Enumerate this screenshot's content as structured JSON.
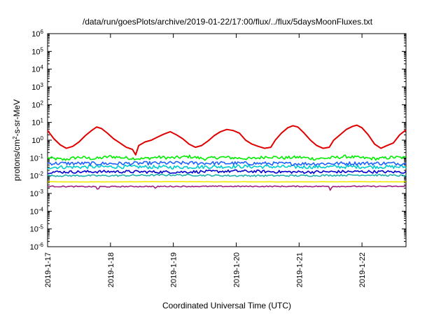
{
  "page": {
    "title": "/data/run/goesPlots/archive/2019-01-22/17:00/flux/../flux/5daysMoonFluxes.txt"
  },
  "chart_data": {
    "type": "line",
    "title": "/data/run/goesPlots/archive/2019-01-22/17:00/flux/../flux/5daysMoonFluxes.txt",
    "xlabel": "Coordinated Universal Time (UTC)",
    "ylabel": "protons/cm²-s-sr-MeV",
    "ylabel_parts": [
      "protons/cm",
      "2",
      "-s-sr-MeV"
    ],
    "yscale": "log",
    "ylim_exp": [
      -6,
      6
    ],
    "y_tick_exponents": [
      -6,
      -5,
      -4,
      -3,
      -2,
      -1,
      0,
      1,
      2,
      3,
      4,
      5,
      6
    ],
    "xlim_days": [
      0,
      5.7
    ],
    "x_ticks": [
      {
        "day": 0,
        "label": "2019-1-17"
      },
      {
        "day": 1,
        "label": "2019-1-18"
      },
      {
        "day": 2,
        "label": "2019-1-19"
      },
      {
        "day": 3,
        "label": "2019-1-20"
      },
      {
        "day": 4,
        "label": "2019-1-21"
      },
      {
        "day": 5,
        "label": "2019-1-22"
      }
    ],
    "grid": false,
    "legend": "none",
    "series": [
      {
        "color": "#e00000",
        "points": [
          [
            0.0,
            3.5
          ],
          [
            0.1,
            1.2
          ],
          [
            0.2,
            0.55
          ],
          [
            0.3,
            0.35
          ],
          [
            0.4,
            0.45
          ],
          [
            0.5,
            0.8
          ],
          [
            0.6,
            1.8
          ],
          [
            0.7,
            3.5
          ],
          [
            0.78,
            5.5
          ],
          [
            0.86,
            4.5
          ],
          [
            0.95,
            2.5
          ],
          [
            1.05,
            1.2
          ],
          [
            1.15,
            0.7
          ],
          [
            1.25,
            0.4
          ],
          [
            1.35,
            0.3
          ],
          [
            1.4,
            0.15
          ],
          [
            1.45,
            0.5
          ],
          [
            1.55,
            0.8
          ],
          [
            1.65,
            1.0
          ],
          [
            1.75,
            1.5
          ],
          [
            1.85,
            2.2
          ],
          [
            1.95,
            3.0
          ],
          [
            2.05,
            2.0
          ],
          [
            2.15,
            1.2
          ],
          [
            2.25,
            0.6
          ],
          [
            2.35,
            0.4
          ],
          [
            2.45,
            0.5
          ],
          [
            2.55,
            0.9
          ],
          [
            2.65,
            1.8
          ],
          [
            2.75,
            3.0
          ],
          [
            2.85,
            4.0
          ],
          [
            2.95,
            3.5
          ],
          [
            3.05,
            2.5
          ],
          [
            3.15,
            1.0
          ],
          [
            3.25,
            0.6
          ],
          [
            3.35,
            0.45
          ],
          [
            3.45,
            0.35
          ],
          [
            3.55,
            0.4
          ],
          [
            3.62,
            1.0
          ],
          [
            3.72,
            2.5
          ],
          [
            3.82,
            5.0
          ],
          [
            3.9,
            6.5
          ],
          [
            3.98,
            5.5
          ],
          [
            4.08,
            2.5
          ],
          [
            4.18,
            1.0
          ],
          [
            4.28,
            0.5
          ],
          [
            4.38,
            0.35
          ],
          [
            4.48,
            0.4
          ],
          [
            4.55,
            1.0
          ],
          [
            4.65,
            2.0
          ],
          [
            4.75,
            4.0
          ],
          [
            4.85,
            6.0
          ],
          [
            4.92,
            7.0
          ],
          [
            5.0,
            5.0
          ],
          [
            5.1,
            2.0
          ],
          [
            5.2,
            0.6
          ],
          [
            5.3,
            0.35
          ],
          [
            5.4,
            0.5
          ],
          [
            5.5,
            0.7
          ],
          [
            5.6,
            2.0
          ],
          [
            5.7,
            3.8
          ]
        ]
      },
      {
        "color": "#00ee00",
        "points": [
          [
            0.0,
            0.1
          ],
          [
            0.25,
            0.08
          ],
          [
            0.5,
            0.11
          ],
          [
            0.75,
            0.09
          ],
          [
            1.0,
            0.12
          ],
          [
            1.25,
            0.1
          ],
          [
            1.5,
            0.09
          ],
          [
            1.75,
            0.11
          ],
          [
            2.0,
            0.1
          ],
          [
            2.25,
            0.12
          ],
          [
            2.5,
            0.09
          ],
          [
            2.75,
            0.11
          ],
          [
            3.0,
            0.1
          ],
          [
            3.25,
            0.09
          ],
          [
            3.5,
            0.12
          ],
          [
            3.75,
            0.1
          ],
          [
            4.0,
            0.11
          ],
          [
            4.25,
            0.09
          ],
          [
            4.5,
            0.1
          ],
          [
            4.75,
            0.12
          ],
          [
            5.0,
            0.1
          ],
          [
            5.25,
            0.09
          ],
          [
            5.5,
            0.11
          ],
          [
            5.7,
            0.1
          ]
        ],
        "noise": 0.09
      },
      {
        "color": "#00cccc",
        "points": [
          [
            0.0,
            0.03
          ],
          [
            1.0,
            0.032
          ],
          [
            2.0,
            0.03
          ],
          [
            3.0,
            0.033
          ],
          [
            4.0,
            0.031
          ],
          [
            5.0,
            0.032
          ],
          [
            5.7,
            0.031
          ]
        ],
        "noise": 0.1
      },
      {
        "color": "#2060ff",
        "points": [
          [
            0.0,
            0.05
          ],
          [
            1.0,
            0.048
          ],
          [
            2.0,
            0.052
          ],
          [
            3.0,
            0.05
          ],
          [
            4.0,
            0.047
          ],
          [
            5.0,
            0.05
          ],
          [
            5.7,
            0.049
          ]
        ],
        "noise": 0.1
      },
      {
        "color": "#0000cc",
        "points": [
          [
            0.0,
            0.016
          ],
          [
            1.0,
            0.017
          ],
          [
            2.0,
            0.016
          ],
          [
            3.0,
            0.018
          ],
          [
            4.0,
            0.016
          ],
          [
            5.0,
            0.017
          ],
          [
            5.7,
            0.016
          ]
        ],
        "noise": 0.08
      },
      {
        "color": "#20b0b0",
        "points": [
          [
            0.0,
            0.01
          ],
          [
            1.0,
            0.01
          ],
          [
            2.0,
            0.011
          ],
          [
            3.0,
            0.01
          ],
          [
            4.0,
            0.01
          ],
          [
            5.0,
            0.011
          ],
          [
            5.7,
            0.01
          ]
        ],
        "noise": 0.05
      },
      {
        "color": "#f0e800",
        "points": [
          [
            0.0,
            0.0045
          ],
          [
            1.0,
            0.0045
          ],
          [
            2.0,
            0.0046
          ],
          [
            3.0,
            0.0045
          ],
          [
            4.0,
            0.0045
          ],
          [
            5.0,
            0.0046
          ],
          [
            5.7,
            0.0045
          ]
        ],
        "noise": 0.01
      },
      {
        "color": "#a02080",
        "points": [
          [
            0.0,
            0.0025
          ],
          [
            0.78,
            0.0024
          ],
          [
            0.8,
            0.0013
          ],
          [
            0.82,
            0.0024
          ],
          [
            1.7,
            0.0025
          ],
          [
            1.72,
            0.0016
          ],
          [
            1.74,
            0.0025
          ],
          [
            3.0,
            0.0025
          ],
          [
            4.48,
            0.0025
          ],
          [
            4.5,
            0.0013
          ],
          [
            4.52,
            0.0025
          ],
          [
            5.7,
            0.0025
          ]
        ],
        "noise": 0.03
      }
    ]
  }
}
